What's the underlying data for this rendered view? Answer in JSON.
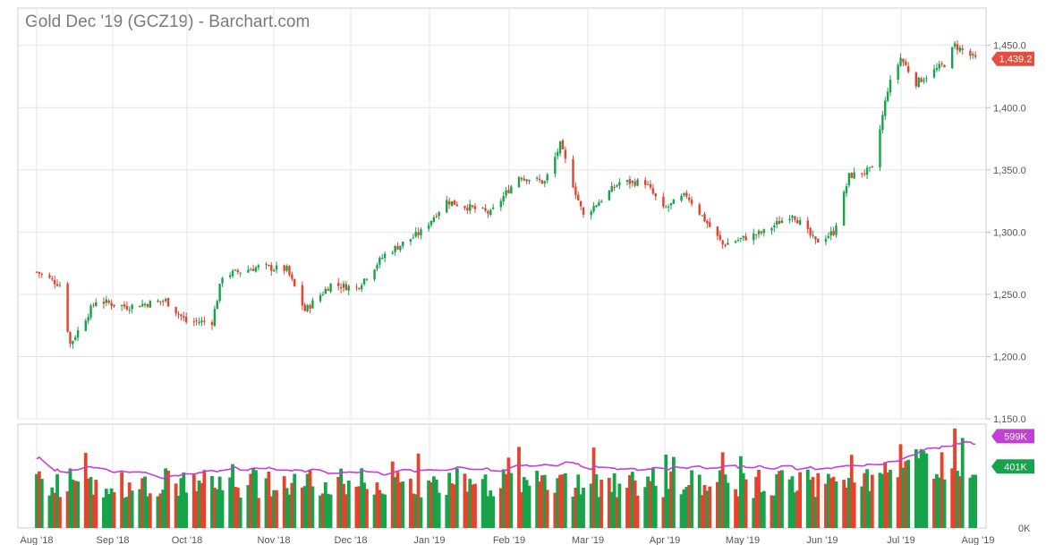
{
  "chart_data": {
    "type": "candlestick",
    "title": "Gold Dec '19 (GCZ19) - Barchart.com",
    "x_ticks": [
      "Aug '18",
      "Sep '18",
      "Oct '18",
      "Nov '18",
      "Dec '18",
      "Jan '19",
      "Feb '19",
      "Mar '19",
      "Apr '19",
      "May '19",
      "Jun '19",
      "Jul '19",
      "Aug '19"
    ],
    "price_axis": {
      "ticks": [
        "1,450.0",
        "1,400.0",
        "1,350.0",
        "1,300.0",
        "1,250.0",
        "1,200.0",
        "1,150.0"
      ],
      "ylim": [
        1150,
        1480
      ]
    },
    "volume_axis": {
      "ticks": [
        "0K"
      ],
      "ylim": [
        0,
        900
      ]
    },
    "last_price": {
      "label": "1,439.2",
      "value": 1439.2,
      "color": "#e74c3c"
    },
    "volume_avg_badge": {
      "label": "599K",
      "value": 599,
      "color": "#c43fd6"
    },
    "volume_last_badge": {
      "label": "401K",
      "value": 401,
      "color": "#16a34a"
    },
    "colors": {
      "up": "#16a34a",
      "down": "#e5432c",
      "avg_line": "#c43fd6",
      "grid": "#e4e4e4"
    },
    "close_series": [
      {
        "date": "2018-08-01",
        "close": 1268
      },
      {
        "date": "2018-08-10",
        "close": 1258
      },
      {
        "date": "2018-08-14",
        "close": 1210
      },
      {
        "date": "2018-08-24",
        "close": 1245
      },
      {
        "date": "2018-09-05",
        "close": 1240
      },
      {
        "date": "2018-09-20",
        "close": 1245
      },
      {
        "date": "2018-09-28",
        "close": 1228
      },
      {
        "date": "2018-10-08",
        "close": 1228
      },
      {
        "date": "2018-10-12",
        "close": 1265
      },
      {
        "date": "2018-10-26",
        "close": 1272
      },
      {
        "date": "2018-11-06",
        "close": 1270
      },
      {
        "date": "2018-11-13",
        "close": 1237
      },
      {
        "date": "2018-11-23",
        "close": 1258
      },
      {
        "date": "2018-12-03",
        "close": 1255
      },
      {
        "date": "2018-12-14",
        "close": 1282
      },
      {
        "date": "2018-12-28",
        "close": 1300
      },
      {
        "date": "2019-01-07",
        "close": 1325
      },
      {
        "date": "2019-01-24",
        "close": 1315
      },
      {
        "date": "2019-02-04",
        "close": 1345
      },
      {
        "date": "2019-02-14",
        "close": 1340
      },
      {
        "date": "2019-02-20",
        "close": 1370
      },
      {
        "date": "2019-03-01",
        "close": 1313
      },
      {
        "date": "2019-03-15",
        "close": 1340
      },
      {
        "date": "2019-03-25",
        "close": 1340
      },
      {
        "date": "2019-04-01",
        "close": 1318
      },
      {
        "date": "2019-04-10",
        "close": 1330
      },
      {
        "date": "2019-04-24",
        "close": 1290
      },
      {
        "date": "2019-05-10",
        "close": 1300
      },
      {
        "date": "2019-05-21",
        "close": 1315
      },
      {
        "date": "2019-05-30",
        "close": 1292
      },
      {
        "date": "2019-06-06",
        "close": 1300
      },
      {
        "date": "2019-06-12",
        "close": 1345
      },
      {
        "date": "2019-06-21",
        "close": 1350
      },
      {
        "date": "2019-06-27",
        "close": 1415
      },
      {
        "date": "2019-07-02",
        "close": 1440
      },
      {
        "date": "2019-07-08",
        "close": 1420
      },
      {
        "date": "2019-07-19",
        "close": 1435
      },
      {
        "date": "2019-07-23",
        "close": 1450
      },
      {
        "date": "2019-07-31",
        "close": 1439
      }
    ]
  }
}
